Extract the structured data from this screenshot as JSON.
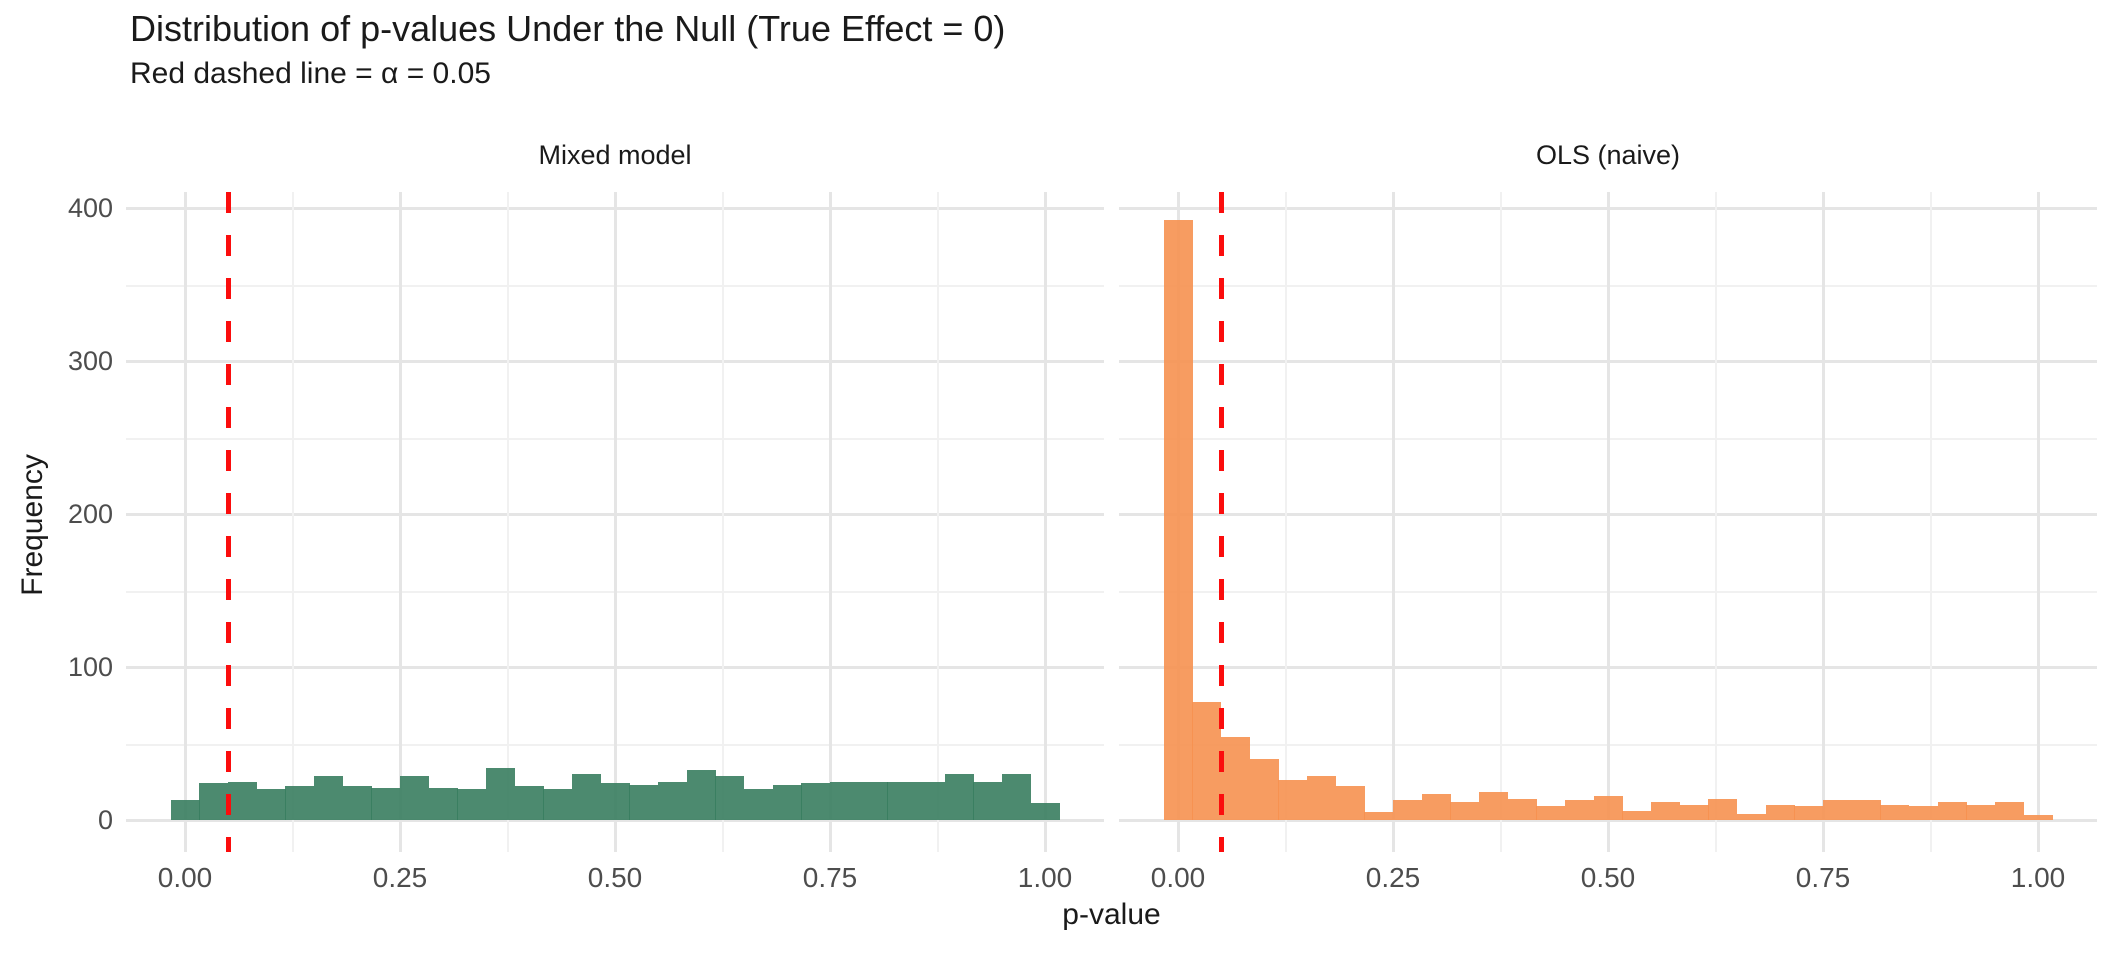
{
  "title": "Distribution of p-values Under the Null (True Effect = 0)",
  "subtitle": "Red dashed line = α = 0.05",
  "y_axis": {
    "title": "Frequency",
    "ticks": [
      "0",
      "100",
      "200",
      "300",
      "400"
    ],
    "tick_values": [
      0,
      100,
      200,
      300,
      400
    ]
  },
  "x_axis": {
    "title": "p-value",
    "ticks": [
      "0.00",
      "0.25",
      "0.50",
      "0.75",
      "1.00"
    ],
    "tick_values": [
      0,
      0.25,
      0.5,
      0.75,
      1.0
    ]
  },
  "colors": {
    "mixed_bar": "rgba(57,125,95,0.9)",
    "ols_bar": "rgba(246,145,80,0.9)",
    "grid_major": "#E5E5E5",
    "grid_minor": "#F1F1F1",
    "vline_red": "#FB0D0D",
    "tick_text": "#4d4d4d",
    "text": "#1a1a1a"
  },
  "chart_data": {
    "type": "bar",
    "subtype": "faceted-histogram",
    "title": "Distribution of p-values Under the Null (True Effect = 0)",
    "subtitle": "Red dashed line = α = 0.05",
    "xlabel": "p-value",
    "ylabel": "Frequency",
    "xlim": [
      -0.07,
      1.07
    ],
    "ylim": [
      0,
      412
    ],
    "grid": "on",
    "legend_position": "none",
    "vline": {
      "x": 0.05,
      "style": "dashed",
      "color": "red",
      "label": "alpha = 0.05"
    },
    "bin_center_start": 0.0,
    "bin_center_step": 0.033333,
    "n_bins": 31,
    "facets": [
      {
        "label": "Mixed model",
        "values": [
          13,
          24,
          25,
          20,
          22,
          29,
          22,
          21,
          29,
          21,
          20,
          34,
          22,
          20,
          30,
          24,
          23,
          25,
          33,
          29,
          20,
          23,
          24,
          25,
          25,
          25,
          25,
          30,
          25,
          30,
          11
        ]
      },
      {
        "label": "OLS (naive)",
        "values": [
          392,
          77,
          54,
          40,
          26,
          29,
          22,
          5,
          13,
          17,
          12,
          18,
          14,
          9,
          13,
          16,
          6,
          12,
          10,
          14,
          4,
          10,
          9,
          13,
          13,
          10,
          9,
          12,
          10,
          12,
          3
        ]
      }
    ]
  }
}
